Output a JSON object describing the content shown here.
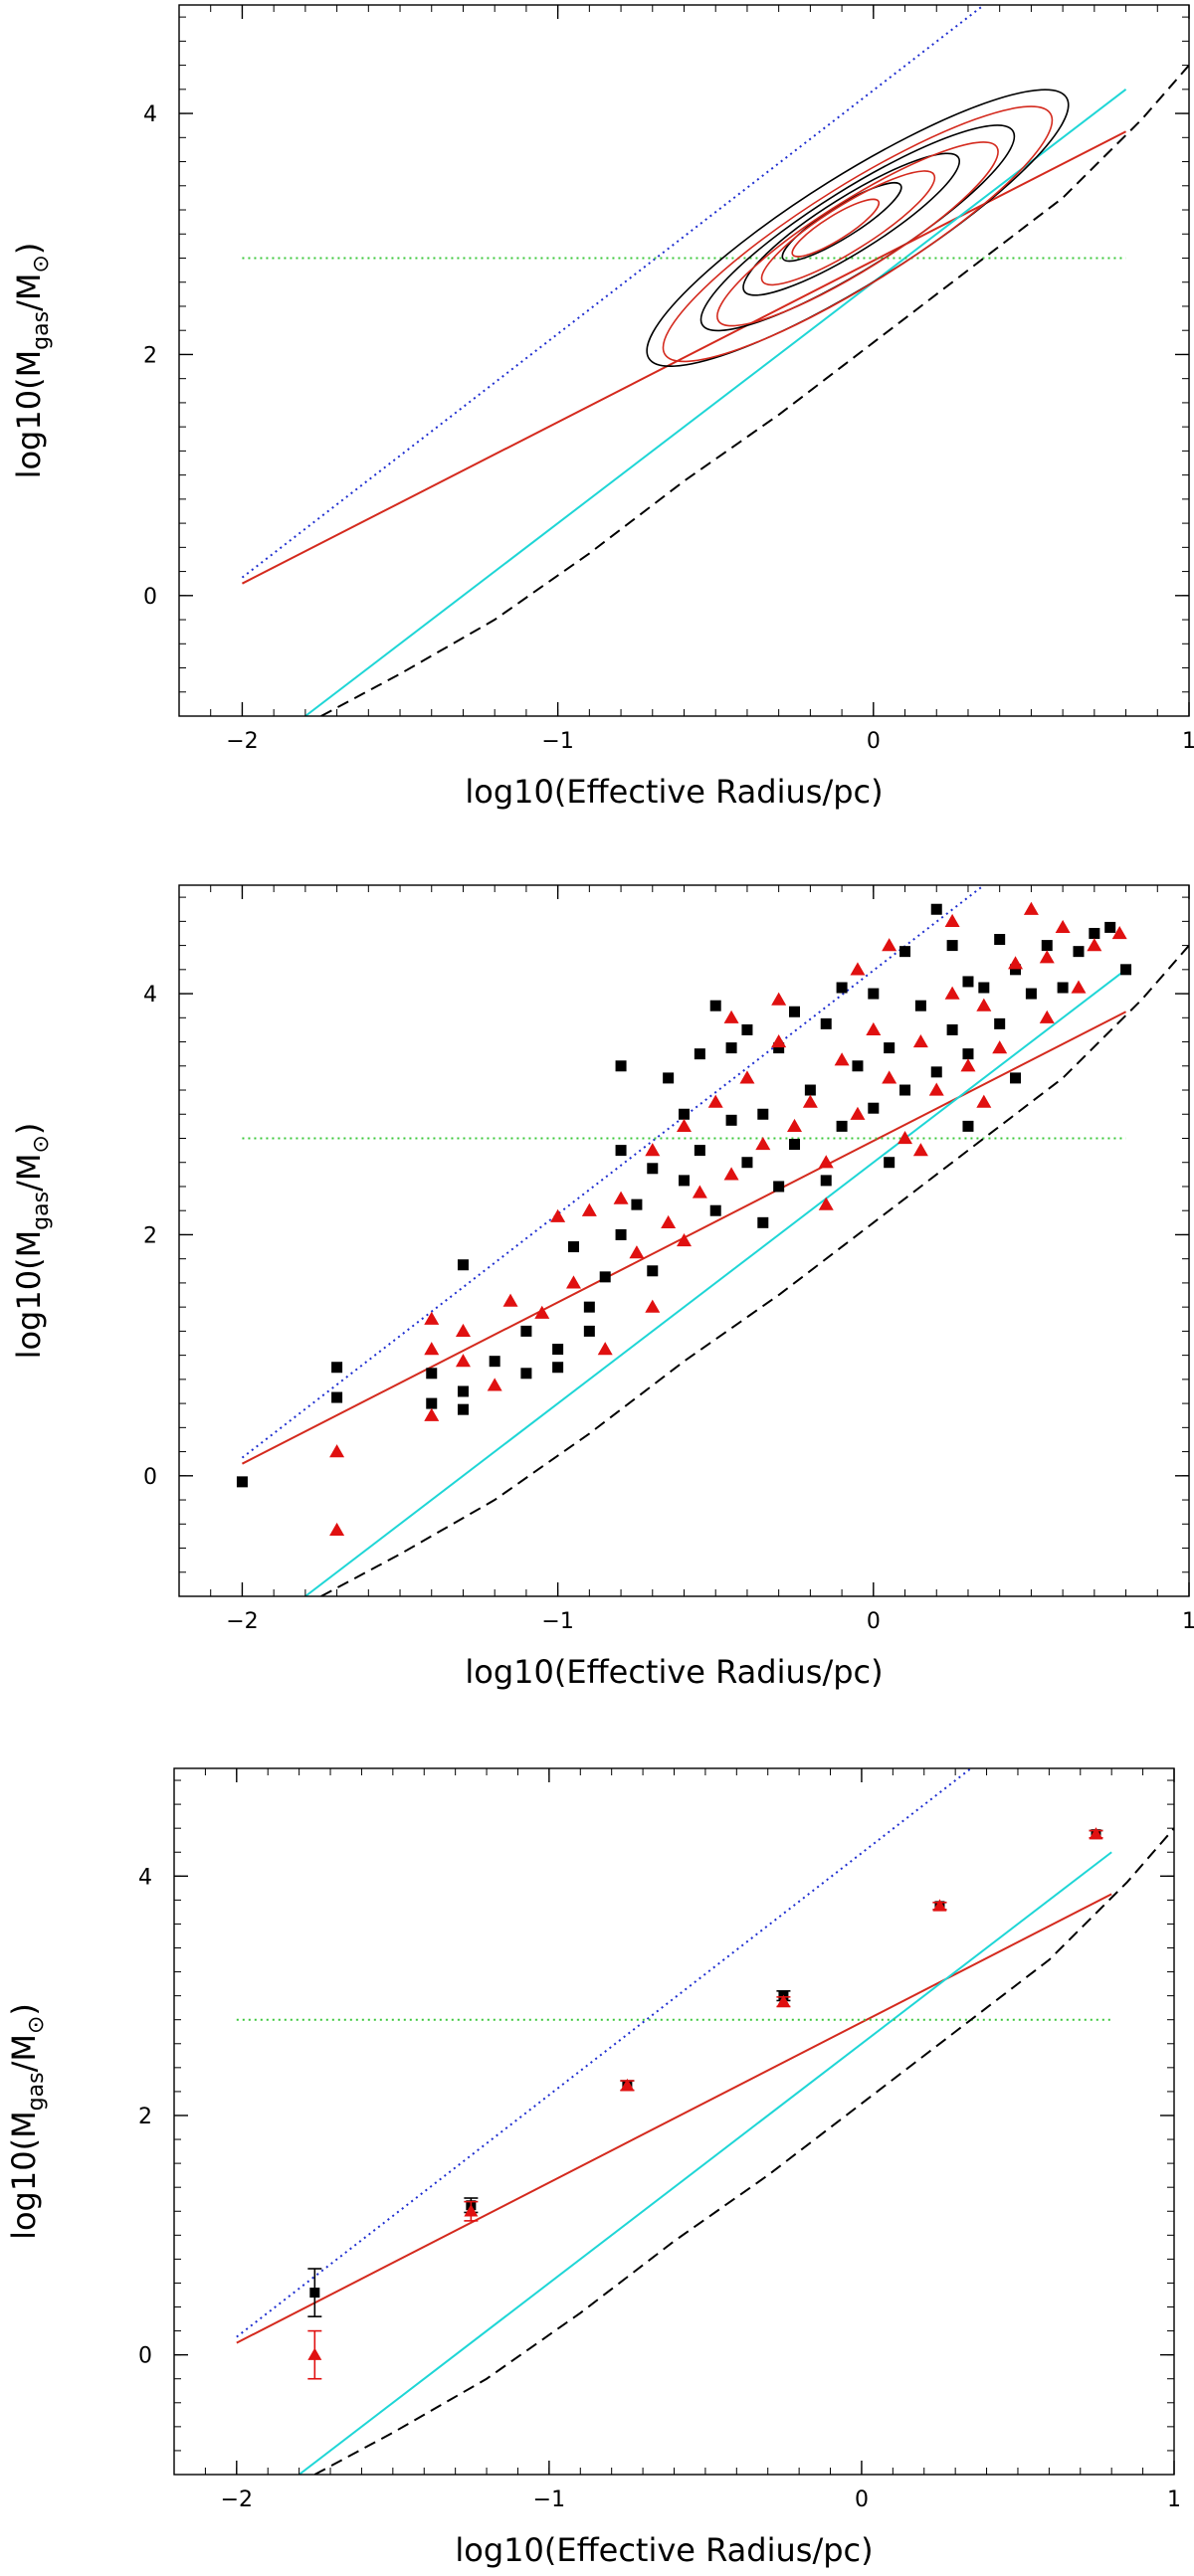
{
  "chart_data": [
    {
      "type": "line",
      "title": "",
      "xlabel": "log10(Effective Radius/pc)",
      "ylabel_parts": {
        "pre": "log10(M",
        "sub1": "gas",
        "mid": "/M",
        "sub2": "⊙",
        "post": ")"
      },
      "xlim": [
        -2.2,
        1.0
      ],
      "ylim": [
        -1.0,
        4.9
      ],
      "xticks": [
        -2,
        -1,
        0,
        1
      ],
      "xtick_labels": [
        "−2",
        "−1",
        "0",
        "1"
      ],
      "yticks": [
        0,
        2,
        4
      ],
      "ytick_labels": [
        "0",
        "2",
        "4"
      ],
      "grid": false,
      "colors": {
        "blue_dotted": "#1f2fd0",
        "red_fit": "#d42a1e",
        "cyan_line": "#1fd6d6",
        "black_dashed": "#000000",
        "green_dotted": "#3cc83c",
        "red_points": "#e01010",
        "black_points": "#000000"
      },
      "reference_lines": [
        {
          "id": "blue-dotted",
          "color": "#1f2fd0",
          "style": "dotted",
          "x": [
            -2.0,
            0.35
          ],
          "y": [
            0.15,
            4.9
          ]
        },
        {
          "id": "red-fit",
          "color": "#d42a1e",
          "style": "solid",
          "x": [
            -2.0,
            0.8
          ],
          "y": [
            0.1,
            3.85
          ]
        },
        {
          "id": "cyan",
          "color": "#1fd6d6",
          "style": "solid",
          "x": [
            -1.8,
            0.8
          ],
          "y": [
            -1.0,
            4.2
          ]
        },
        {
          "id": "green-dotted",
          "color": "#3cc83c",
          "style": "dotted",
          "x": [
            -2.0,
            0.8
          ],
          "y": [
            2.8,
            2.8
          ]
        },
        {
          "id": "black-dashed",
          "color": "#000000",
          "style": "dashed",
          "x": [
            -1.75,
            -1.5,
            -1.2,
            -0.9,
            -0.6,
            -0.3,
            0.0,
            0.3,
            0.6,
            0.85,
            1.0
          ],
          "y": [
            -1.0,
            -0.65,
            -0.2,
            0.35,
            0.95,
            1.5,
            2.1,
            2.7,
            3.3,
            3.95,
            4.4
          ]
        }
      ],
      "contours": {
        "black": [
          {
            "cx": -0.05,
            "cy": 3.05,
            "rx": 0.78,
            "ry": 0.45,
            "rot": 32
          },
          {
            "cx": -0.05,
            "cy": 3.05,
            "rx": 0.58,
            "ry": 0.33,
            "rot": 32
          },
          {
            "cx": -0.07,
            "cy": 3.08,
            "rx": 0.4,
            "ry": 0.23,
            "rot": 32
          },
          {
            "cx": -0.1,
            "cy": 3.1,
            "rx": 0.22,
            "ry": 0.13,
            "rot": 32
          }
        ],
        "red": [
          {
            "cx": -0.05,
            "cy": 3.0,
            "rx": 0.72,
            "ry": 0.41,
            "rot": 32
          },
          {
            "cx": -0.05,
            "cy": 3.0,
            "rx": 0.52,
            "ry": 0.29,
            "rot": 32
          },
          {
            "cx": -0.08,
            "cy": 3.05,
            "rx": 0.32,
            "ry": 0.19,
            "rot": 32
          },
          {
            "cx": -0.12,
            "cy": 3.05,
            "rx": 0.16,
            "ry": 0.1,
            "rot": 32
          }
        ]
      }
    },
    {
      "type": "scatter",
      "title": "",
      "xlabel": "log10(Effective Radius/pc)",
      "ylabel_parts": {
        "pre": "log10(M",
        "sub1": "gas",
        "mid": "/M",
        "sub2": "⊙",
        "post": ")"
      },
      "xlim": [
        -2.2,
        1.0
      ],
      "ylim": [
        -1.0,
        4.9
      ],
      "xticks": [
        -2,
        -1,
        0,
        1
      ],
      "xtick_labels": [
        "−2",
        "−1",
        "0",
        "1"
      ],
      "yticks": [
        0,
        2,
        4
      ],
      "ytick_labels": [
        "0",
        "2",
        "4"
      ],
      "grid": false,
      "series": [
        {
          "marker": "square",
          "color": "#000000",
          "points": [
            [
              -2.0,
              -0.05
            ],
            [
              -1.7,
              0.9
            ],
            [
              -1.7,
              0.65
            ],
            [
              -1.4,
              0.85
            ],
            [
              -1.4,
              0.6
            ],
            [
              -1.3,
              1.75
            ],
            [
              -1.3,
              0.7
            ],
            [
              -1.3,
              0.55
            ],
            [
              -1.2,
              0.95
            ],
            [
              -1.1,
              1.2
            ],
            [
              -1.1,
              0.85
            ],
            [
              -1.0,
              1.05
            ],
            [
              -1.0,
              0.9
            ],
            [
              -0.9,
              1.4
            ],
            [
              -0.9,
              1.2
            ],
            [
              -0.85,
              1.65
            ],
            [
              -0.8,
              2.0
            ],
            [
              -0.8,
              3.4
            ],
            [
              -0.75,
              2.25
            ],
            [
              -0.7,
              2.55
            ],
            [
              -0.7,
              1.7
            ],
            [
              -0.65,
              3.3
            ],
            [
              -0.6,
              2.45
            ],
            [
              -0.55,
              2.7
            ],
            [
              -0.55,
              3.5
            ],
            [
              -0.5,
              2.2
            ],
            [
              -0.45,
              2.95
            ],
            [
              -0.45,
              3.55
            ],
            [
              -0.4,
              2.6
            ],
            [
              -0.35,
              3.0
            ],
            [
              -0.3,
              2.4
            ],
            [
              -0.3,
              3.55
            ],
            [
              -0.25,
              2.75
            ],
            [
              -0.2,
              3.2
            ],
            [
              -0.15,
              3.75
            ],
            [
              -0.1,
              2.9
            ],
            [
              -0.05,
              3.4
            ],
            [
              0.0,
              3.05
            ],
            [
              0.05,
              3.55
            ],
            [
              0.1,
              3.2
            ],
            [
              0.15,
              3.9
            ],
            [
              0.2,
              3.35
            ],
            [
              0.25,
              3.7
            ],
            [
              0.3,
              3.5
            ],
            [
              0.35,
              4.05
            ],
            [
              0.4,
              3.75
            ],
            [
              0.45,
              4.2
            ],
            [
              0.5,
              4.0
            ],
            [
              0.55,
              4.4
            ],
            [
              0.6,
              4.05
            ],
            [
              0.65,
              4.35
            ],
            [
              0.7,
              4.5
            ],
            [
              0.75,
              4.55
            ],
            [
              0.8,
              4.2
            ],
            [
              0.1,
              4.35
            ],
            [
              -0.1,
              4.05
            ],
            [
              0.3,
              4.1
            ],
            [
              0.2,
              4.7
            ],
            [
              -0.25,
              3.85
            ],
            [
              -0.6,
              3.0
            ],
            [
              -0.35,
              2.1
            ],
            [
              0.05,
              2.6
            ],
            [
              0.3,
              2.9
            ],
            [
              0.45,
              3.3
            ],
            [
              -0.15,
              2.45
            ],
            [
              -0.8,
              2.7
            ],
            [
              -0.95,
              1.9
            ],
            [
              -0.5,
              3.9
            ],
            [
              -0.4,
              3.7
            ],
            [
              0.0,
              4.0
            ],
            [
              0.25,
              4.4
            ],
            [
              0.4,
              4.45
            ]
          ]
        },
        {
          "marker": "triangle",
          "color": "#e01010",
          "points": [
            [
              -1.7,
              0.2
            ],
            [
              -1.7,
              -0.45
            ],
            [
              -1.4,
              1.3
            ],
            [
              -1.4,
              1.05
            ],
            [
              -1.4,
              0.5
            ],
            [
              -1.3,
              1.2
            ],
            [
              -1.3,
              0.95
            ],
            [
              -1.2,
              0.75
            ],
            [
              -1.15,
              1.45
            ],
            [
              -1.05,
              1.35
            ],
            [
              -1.0,
              2.15
            ],
            [
              -0.95,
              1.6
            ],
            [
              -0.9,
              2.2
            ],
            [
              -0.85,
              1.05
            ],
            [
              -0.8,
              2.3
            ],
            [
              -0.75,
              1.85
            ],
            [
              -0.7,
              2.7
            ],
            [
              -0.7,
              1.4
            ],
            [
              -0.65,
              2.1
            ],
            [
              -0.6,
              2.9
            ],
            [
              -0.55,
              2.35
            ],
            [
              -0.5,
              3.1
            ],
            [
              -0.45,
              2.5
            ],
            [
              -0.4,
              3.3
            ],
            [
              -0.35,
              2.75
            ],
            [
              -0.3,
              3.6
            ],
            [
              -0.25,
              2.9
            ],
            [
              -0.2,
              3.1
            ],
            [
              -0.15,
              2.6
            ],
            [
              -0.1,
              3.45
            ],
            [
              -0.05,
              3.0
            ],
            [
              0.0,
              3.7
            ],
            [
              0.05,
              3.3
            ],
            [
              0.1,
              2.8
            ],
            [
              0.15,
              3.6
            ],
            [
              0.2,
              3.2
            ],
            [
              0.25,
              4.0
            ],
            [
              0.3,
              3.4
            ],
            [
              0.35,
              3.9
            ],
            [
              0.4,
              3.55
            ],
            [
              0.45,
              4.25
            ],
            [
              0.5,
              4.7
            ],
            [
              0.55,
              4.3
            ],
            [
              0.6,
              4.55
            ],
            [
              0.65,
              4.05
            ],
            [
              0.7,
              4.4
            ],
            [
              0.78,
              4.5
            ],
            [
              0.55,
              3.8
            ],
            [
              0.25,
              4.6
            ],
            [
              -0.05,
              4.2
            ],
            [
              -0.45,
              3.8
            ],
            [
              -0.15,
              2.25
            ],
            [
              0.15,
              2.7
            ],
            [
              -0.6,
              1.95
            ],
            [
              0.35,
              3.1
            ],
            [
              -0.3,
              3.95
            ],
            [
              0.05,
              4.4
            ]
          ]
        }
      ],
      "reference_lines": [
        {
          "id": "blue-dotted",
          "color": "#1f2fd0",
          "style": "dotted",
          "x": [
            -2.0,
            0.35
          ],
          "y": [
            0.15,
            4.9
          ]
        },
        {
          "id": "red-fit",
          "color": "#d42a1e",
          "style": "solid",
          "x": [
            -2.0,
            0.8
          ],
          "y": [
            0.1,
            3.85
          ]
        },
        {
          "id": "cyan",
          "color": "#1fd6d6",
          "style": "solid",
          "x": [
            -1.8,
            0.8
          ],
          "y": [
            -1.0,
            4.2
          ]
        },
        {
          "id": "green-dotted",
          "color": "#3cc83c",
          "style": "dotted",
          "x": [
            -2.0,
            0.8
          ],
          "y": [
            2.8,
            2.8
          ]
        },
        {
          "id": "black-dashed",
          "color": "#000000",
          "style": "dashed",
          "x": [
            -1.75,
            -1.5,
            -1.2,
            -0.9,
            -0.6,
            -0.3,
            0.0,
            0.3,
            0.6,
            0.85,
            1.0
          ],
          "y": [
            -1.0,
            -0.65,
            -0.2,
            0.35,
            0.95,
            1.5,
            2.1,
            2.7,
            3.3,
            3.95,
            4.4
          ]
        }
      ]
    },
    {
      "type": "scatter",
      "title": "",
      "xlabel": "log10(Effective Radius/pc)",
      "ylabel_parts": {
        "pre": "log10(M",
        "sub1": "gas",
        "mid": "/M",
        "sub2": "⊙",
        "post": ")"
      },
      "xlim": [
        -2.2,
        1.0
      ],
      "ylim": [
        -1.0,
        4.9
      ],
      "xticks": [
        -2,
        -1,
        0,
        1
      ],
      "xtick_labels": [
        "−2",
        "−1",
        "0",
        "1"
      ],
      "yticks": [
        0,
        2,
        4
      ],
      "ytick_labels": [
        "0",
        "2",
        "4"
      ],
      "grid": false,
      "series": [
        {
          "marker": "square",
          "color": "#000000",
          "points": [
            [
              -1.75,
              0.52
            ],
            [
              -1.25,
              1.25
            ],
            [
              -0.75,
              2.25
            ],
            [
              -0.25,
              3.0
            ],
            [
              0.25,
              3.75
            ],
            [
              0.75,
              4.35
            ]
          ],
          "errors": [
            0.2,
            0.06,
            0.04,
            0.04,
            0.03,
            0.03
          ]
        },
        {
          "marker": "triangle",
          "color": "#e01010",
          "points": [
            [
              -1.75,
              0.0
            ],
            [
              -1.25,
              1.2
            ],
            [
              -0.75,
              2.25
            ],
            [
              -0.25,
              2.95
            ],
            [
              0.25,
              3.75
            ],
            [
              0.75,
              4.35
            ]
          ],
          "errors": [
            0.2,
            0.08,
            0.04,
            0.04,
            0.03,
            0.03
          ]
        }
      ],
      "reference_lines": [
        {
          "id": "blue-dotted",
          "color": "#1f2fd0",
          "style": "dotted",
          "x": [
            -2.0,
            0.35
          ],
          "y": [
            0.15,
            4.9
          ]
        },
        {
          "id": "red-fit",
          "color": "#d42a1e",
          "style": "solid",
          "x": [
            -2.0,
            0.8
          ],
          "y": [
            0.1,
            3.85
          ]
        },
        {
          "id": "cyan",
          "color": "#1fd6d6",
          "style": "solid",
          "x": [
            -1.8,
            0.8
          ],
          "y": [
            -1.0,
            4.2
          ]
        },
        {
          "id": "green-dotted",
          "color": "#3cc83c",
          "style": "dotted",
          "x": [
            -2.0,
            0.8
          ],
          "y": [
            2.8,
            2.8
          ]
        },
        {
          "id": "black-dashed",
          "color": "#000000",
          "style": "dashed",
          "x": [
            -1.75,
            -1.5,
            -1.2,
            -0.9,
            -0.6,
            -0.3,
            0.0,
            0.3,
            0.6,
            0.85,
            1.0
          ],
          "y": [
            -1.0,
            -0.65,
            -0.2,
            0.35,
            0.95,
            1.5,
            2.1,
            2.7,
            3.3,
            3.95,
            4.4
          ]
        }
      ]
    }
  ]
}
